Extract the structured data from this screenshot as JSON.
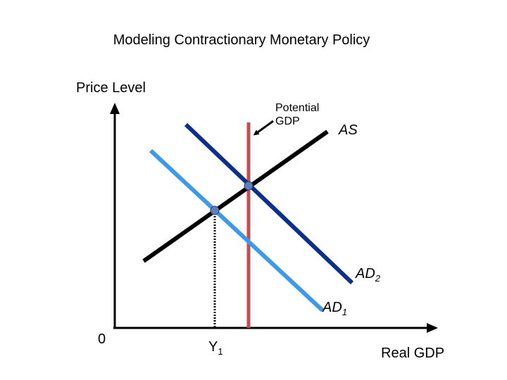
{
  "title": "Modeling Contractionary Monetary Policy",
  "axes": {
    "y_label": "Price Level",
    "x_label": "Real GDP",
    "origin": "0"
  },
  "x_marker": {
    "main": "Y",
    "sub": "1"
  },
  "curves": {
    "as": {
      "label": "AS",
      "color": "#000000"
    },
    "ad2": {
      "main": "AD",
      "sub": "2",
      "color": "#0a2f8c"
    },
    "ad1": {
      "main": "AD",
      "sub": "1",
      "color": "#3d9ae8"
    },
    "potential_gdp": {
      "line1": "Potential",
      "line2": "GDP",
      "color": "#c0504d"
    }
  },
  "equilibrium_point_color": "#5f7fb8"
}
